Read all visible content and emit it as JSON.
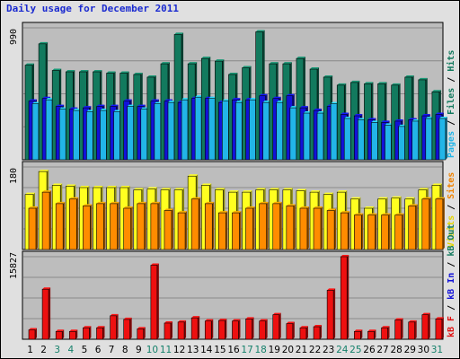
{
  "chart_data": {
    "type": "bar",
    "title": "Daily usage for December 2011",
    "categories": [
      "1",
      "2",
      "3",
      "4",
      "5",
      "6",
      "7",
      "8",
      "9",
      "10",
      "11",
      "12",
      "13",
      "14",
      "15",
      "16",
      "17",
      "18",
      "19",
      "20",
      "21",
      "22",
      "23",
      "24",
      "25",
      "26",
      "27",
      "28",
      "29",
      "30",
      "31"
    ],
    "weekend_days": [
      "3",
      "4",
      "10",
      "11",
      "17",
      "18",
      "24",
      "25",
      "31"
    ],
    "grid": true,
    "panels": [
      {
        "id": "panel1",
        "max_label": "990",
        "ylim": [
          0,
          990
        ],
        "legend": [
          {
            "text": "Pages",
            "color": "#22b5e8"
          },
          {
            "text": "Files",
            "color": "#127a5e"
          },
          {
            "text": "Hits",
            "color": "#127a5e"
          }
        ],
        "series": [
          {
            "name": "Hits",
            "color": "#127a5e",
            "values": [
              710,
              870,
              670,
              660,
              660,
              660,
              650,
              650,
              640,
              620,
              720,
              940,
              720,
              760,
              740,
              640,
              690,
              960,
              720,
              720,
              760,
              680,
              620,
              560,
              580,
              570,
              570,
              560,
              620,
              600,
              510
            ]
          },
          {
            "name": "Files",
            "color": "#1212d8",
            "values": [
              440,
              460,
              400,
              380,
              390,
              400,
              400,
              440,
              400,
              440,
              440,
              430,
              460,
              460,
              430,
              450,
              450,
              480,
              460,
              480,
              390,
              370,
              400,
              340,
              330,
              300,
              280,
              290,
              300,
              330,
              340
            ]
          },
          {
            "name": "Pages",
            "color": "#22b5e8",
            "values": [
              420,
              450,
              380,
              370,
              360,
              370,
              360,
              400,
              380,
              420,
              430,
              450,
              470,
              460,
              440,
              430,
              450,
              430,
              430,
              390,
              350,
              350,
              420,
              310,
              300,
              280,
              260,
              250,
              290,
              310,
              310
            ]
          }
        ]
      },
      {
        "id": "panel2",
        "max_label": "180",
        "ylim": [
          0,
          180
        ],
        "legend": [
          {
            "text": "Visits",
            "color": "#e3d400"
          },
          {
            "text": "Sites",
            "color": "#f08200"
          }
        ],
        "series": [
          {
            "name": "Visits",
            "color": "#ffff20",
            "values": [
              120,
              170,
              140,
              138,
              135,
              135,
              135,
              135,
              130,
              132,
              130,
              130,
              160,
              140,
              130,
              125,
              125,
              130,
              130,
              130,
              128,
              125,
              120,
              125,
              110,
              90,
              110,
              112,
              110,
              130,
              140
            ]
          },
          {
            "name": "Sites",
            "color": "#ff8c00",
            "values": [
              90,
              125,
              100,
              110,
              95,
              100,
              100,
              90,
              100,
              100,
              85,
              80,
              110,
              100,
              80,
              80,
              90,
              100,
              100,
              95,
              90,
              90,
              85,
              80,
              75,
              75,
              75,
              75,
              95,
              110,
              110
            ]
          }
        ]
      },
      {
        "id": "panel3",
        "max_label": "15827",
        "ylim": [
          0,
          15827
        ],
        "legend": [
          {
            "text": "kB F",
            "color": "#e01010"
          },
          {
            "text": "kB In",
            "color": "#1212d8"
          },
          {
            "text": "kB Out",
            "color": "#127a5e"
          }
        ],
        "series": [
          {
            "name": "kB F",
            "color": "#ee1010",
            "values": [
              1800,
              9600,
              1500,
              1500,
              2200,
              2200,
              4500,
              3800,
              2000,
              14200,
              3100,
              3300,
              4100,
              3500,
              3600,
              3500,
              3900,
              3500,
              4700,
              3000,
              2200,
              2400,
              9400,
              15827,
              1500,
              1500,
              2200,
              3700,
              3300,
              4700,
              3900
            ]
          }
        ]
      }
    ]
  }
}
